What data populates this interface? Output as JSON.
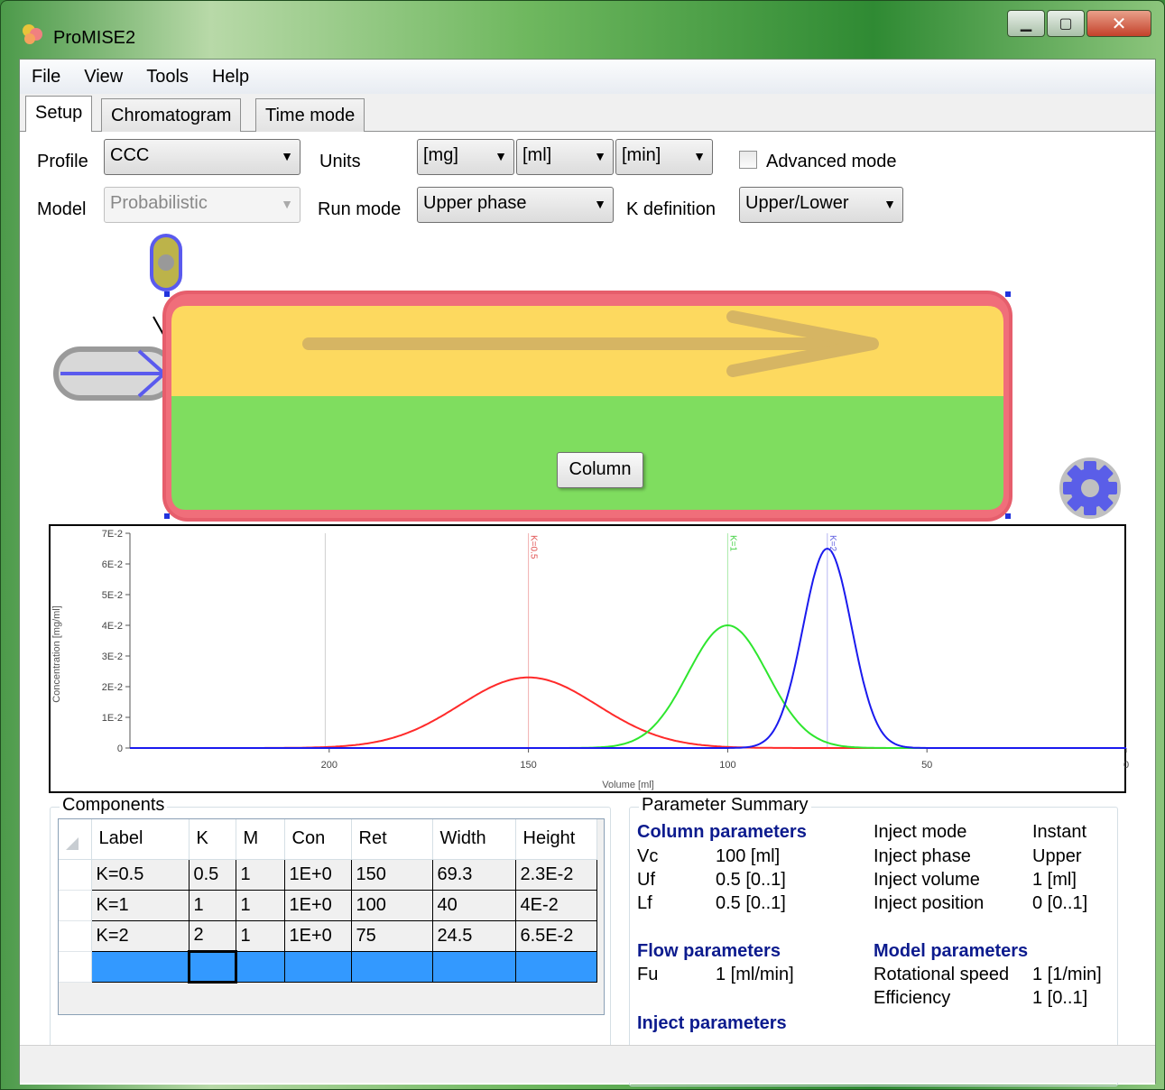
{
  "window": {
    "title": "ProMISE2"
  },
  "menu": [
    "File",
    "View",
    "Tools",
    "Help"
  ],
  "tabs": [
    "Setup",
    "Chromatogram",
    "Time mode"
  ],
  "setup": {
    "profile_label": "Profile",
    "profile_value": "CCC",
    "model_label": "Model",
    "model_value": "Probabilistic",
    "units_label": "Units",
    "unit_mass": "[mg]",
    "unit_volume": "[ml]",
    "unit_time": "[min]",
    "advanced_mode_label": "Advanced mode",
    "advanced_mode_checked": false,
    "run_mode_label": "Run mode",
    "run_mode_value": "Upper phase",
    "k_definition_label": "K definition",
    "k_definition_value": "Upper/Lower",
    "column_label": "Column"
  },
  "chart_data": {
    "type": "line",
    "xlabel": "Volume [ml]",
    "ylabel": "Concentration [mg/ml]",
    "x_reversed": true,
    "xlim": [
      250,
      0
    ],
    "ylim": [
      0,
      0.07
    ],
    "x_ticks": [
      {
        "value": 200,
        "label": "200"
      },
      {
        "value": 150,
        "label": "150"
      },
      {
        "value": 100,
        "label": "100"
      },
      {
        "value": 50,
        "label": "50"
      },
      {
        "value": 0,
        "label": "0"
      }
    ],
    "y_ticks": [
      {
        "value": 0,
        "label": "0"
      },
      {
        "value": 0.01,
        "label": "1E-2"
      },
      {
        "value": 0.02,
        "label": "2E-2"
      },
      {
        "value": 0.03,
        "label": "3E-2"
      },
      {
        "value": 0.04,
        "label": "4E-2"
      },
      {
        "value": 0.05,
        "label": "5E-2"
      },
      {
        "value": 0.06,
        "label": "6E-2"
      },
      {
        "value": 0.07,
        "label": "7E-2"
      }
    ],
    "reference_line_x": 201,
    "series": [
      {
        "name": "K=0.5",
        "color": "#ff2a2a",
        "center": 150,
        "height": 0.023,
        "sigma": 17.3
      },
      {
        "name": "K=1",
        "color": "#2ee62e",
        "center": 100,
        "height": 0.04,
        "sigma": 10.0
      },
      {
        "name": "K=2",
        "color": "#1a1aee",
        "center": 75,
        "height": 0.065,
        "sigma": 6.1
      }
    ],
    "markers": [
      {
        "label": "K=0.5",
        "x": 150,
        "color": "#e05050"
      },
      {
        "label": "K=1",
        "x": 100,
        "color": "#40d040"
      },
      {
        "label": "K=2",
        "x": 75,
        "color": "#6060e0"
      }
    ]
  },
  "components": {
    "title": "Components",
    "columns": [
      "Label",
      "K",
      "M",
      "Con",
      "Ret",
      "Width",
      "Height"
    ],
    "rows": [
      [
        "K=0.5",
        "0.5",
        "1",
        "1E+0",
        "150",
        "69.3",
        "2.3E-2"
      ],
      [
        "K=1",
        "1",
        "1",
        "1E+0",
        "100",
        "40",
        "4E-2"
      ],
      [
        "K=2",
        "2",
        "1",
        "1E+0",
        "75",
        "24.5",
        "6.5E-2"
      ]
    ]
  },
  "summary": {
    "title": "Parameter Summary",
    "column_params_title": "Column parameters",
    "vc_label": "Vc",
    "vc_value": "100 [ml]",
    "uf_label": "Uf",
    "uf_value": "0.5 [0..1]",
    "lf_label": "Lf",
    "lf_value": "0.5 [0..1]",
    "flow_params_title": "Flow parameters",
    "fu_label": "Fu",
    "fu_value": "1 [ml/min]",
    "inject_params_title": "Inject parameters",
    "inject_mode_label": "Inject mode",
    "inject_mode_value": "Instant",
    "inject_phase_label": "Inject phase",
    "inject_phase_value": "Upper",
    "inject_volume_label": "Inject volume",
    "inject_volume_value": "1 [ml]",
    "inject_position_label": "Inject position",
    "inject_position_value": "0 [0..1]",
    "model_params_title": "Model parameters",
    "rot_speed_label": "Rotational speed",
    "rot_speed_value": "1 [1/min]",
    "efficiency_label": "Efficiency",
    "efficiency_value": "1 [0..1]"
  },
  "colors": {
    "upper_phase": "#fdd95f",
    "lower_phase": "#7fdd5f",
    "column_border": "#f06070",
    "summary_heading": "#0c1b8e",
    "selection": "#3399ff"
  }
}
